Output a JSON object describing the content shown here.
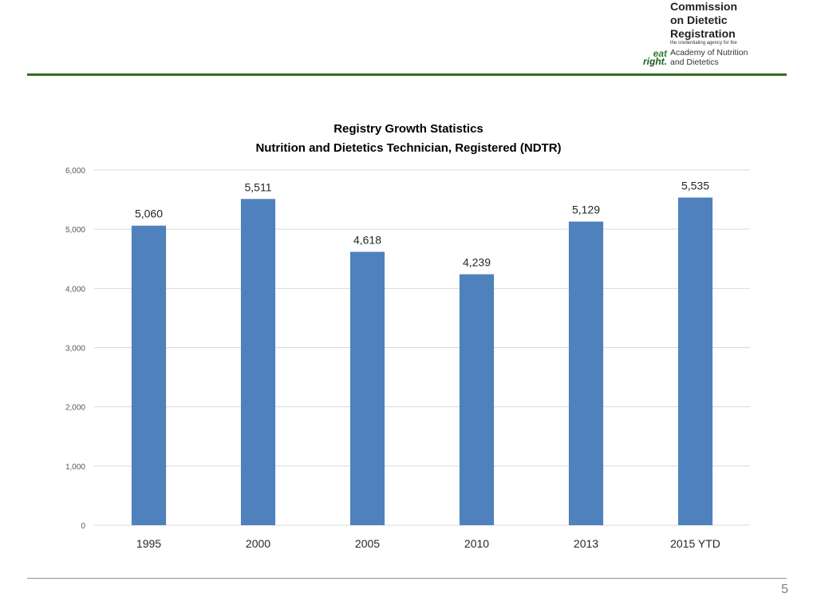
{
  "logo": {
    "org_line1": "Commission",
    "org_line2": "on Dietetic",
    "org_line3": "Registration",
    "tagline": "the credentialing agency for the",
    "academy_line1": "Academy of Nutrition",
    "academy_line2": "and Dietetics",
    "eat_word": "eat",
    "right_word": "right."
  },
  "page_number": "5",
  "chart_data": {
    "type": "bar",
    "title": "Registry Growth Statistics",
    "subtitle": "Nutrition and Dietetics Technician, Registered (NDTR)",
    "categories": [
      "1995",
      "2000",
      "2005",
      "2010",
      "2013",
      "2015 YTD"
    ],
    "values": [
      5060,
      5511,
      4618,
      4239,
      5129,
      5535
    ],
    "data_labels": [
      "5,060",
      "5,511",
      "4,618",
      "4,239",
      "5,129",
      "5,535"
    ],
    "y_ticks": [
      "0",
      "1,000",
      "2,000",
      "3,000",
      "4,000",
      "5,000",
      "6,000"
    ],
    "ylim": [
      0,
      6000
    ],
    "xlabel": "",
    "ylabel": "",
    "grid": true,
    "legend": "none",
    "bar_color": "#4f81bd",
    "grid_color": "#d9d9d9"
  }
}
